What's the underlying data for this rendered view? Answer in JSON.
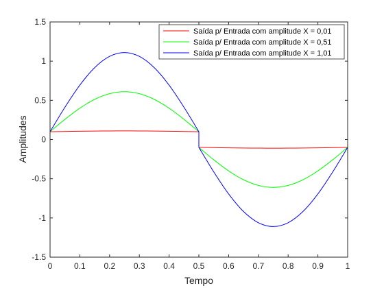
{
  "chart_data": {
    "type": "line",
    "title": "",
    "xlabel": "Tempo",
    "ylabel": "Amplitudes",
    "xlim": [
      0,
      1
    ],
    "ylim": [
      -1.5,
      1.5
    ],
    "xticks": [
      "0",
      "0.1",
      "0.2",
      "0.3",
      "0.4",
      "0.5",
      "0.6",
      "0.7",
      "0.8",
      "0.9",
      "1"
    ],
    "yticks": [
      "-1.5",
      "-1",
      "-0.5",
      "0",
      "0.5",
      "1",
      "1.5"
    ],
    "grid": false,
    "legend_position": "top-right",
    "x": [
      0,
      0.05,
      0.1,
      0.15,
      0.2,
      0.25,
      0.3,
      0.35,
      0.4,
      0.45,
      0.5,
      0.5,
      0.55,
      0.6,
      0.65,
      0.7,
      0.75,
      0.8,
      0.85,
      0.9,
      0.95,
      1
    ],
    "series": [
      {
        "name": "Saída p/ Entrada com amplitude X = 0,01",
        "color": "#ff0000",
        "values": [
          0.1,
          0.1031,
          0.1059,
          0.1081,
          0.1095,
          0.11,
          0.1095,
          0.1081,
          0.1059,
          0.1031,
          0.1,
          -0.1,
          -0.1031,
          -0.1059,
          -0.1081,
          -0.1095,
          -0.11,
          -0.1095,
          -0.1081,
          -0.1059,
          -0.1031,
          -0.1
        ]
      },
      {
        "name": "Saída p/ Entrada com amplitude X = 0,51",
        "color": "#00ff00",
        "values": [
          0.1,
          0.2576,
          0.3998,
          0.5128,
          0.585,
          0.61,
          0.585,
          0.5128,
          0.3998,
          0.2576,
          0.1,
          -0.1,
          -0.2576,
          -0.3998,
          -0.5128,
          -0.585,
          -0.61,
          -0.585,
          -0.5128,
          -0.3998,
          -0.2576,
          -0.1
        ]
      },
      {
        "name": "Saída p/ Entrada com amplitude X = 1,01",
        "color": "#0000ff",
        "values": [
          0.1,
          0.4121,
          0.6937,
          0.9174,
          1.0606,
          1.11,
          1.0606,
          0.9174,
          0.6937,
          0.4121,
          0.1,
          -0.1,
          -0.4121,
          -0.6937,
          -0.9174,
          -1.0606,
          -1.11,
          -1.0606,
          -0.9174,
          -0.6937,
          -0.4121,
          -0.1
        ]
      }
    ]
  }
}
